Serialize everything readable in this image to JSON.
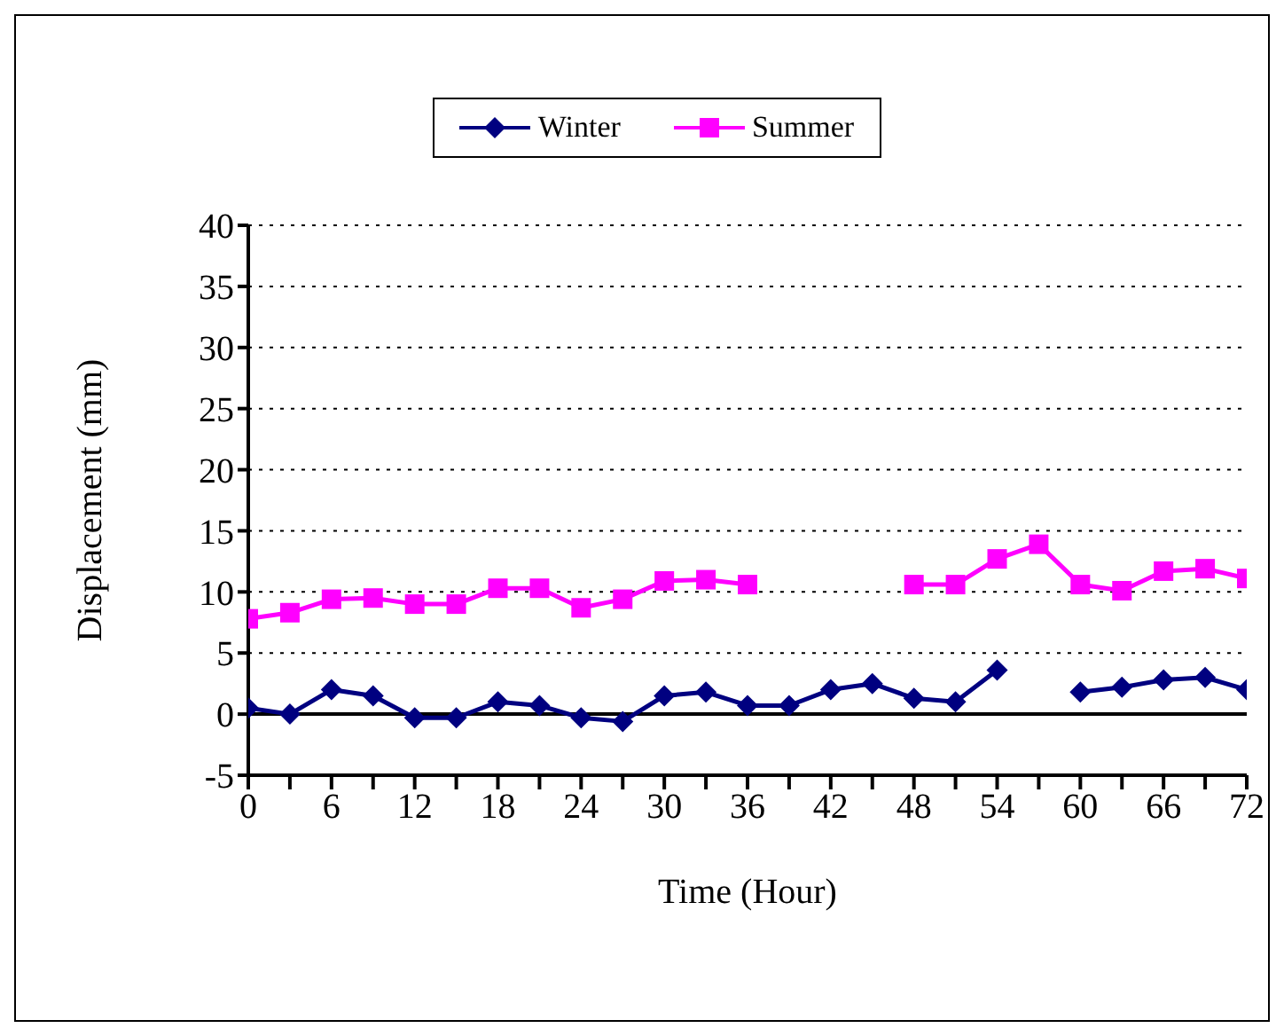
{
  "chart_data": {
    "type": "line",
    "xlabel": "Time (Hour)",
    "ylabel": "Displacement (mm)",
    "x": [
      0,
      3,
      6,
      9,
      12,
      15,
      18,
      21,
      24,
      27,
      30,
      33,
      36,
      39,
      42,
      45,
      48,
      51,
      54,
      57,
      60,
      63,
      66,
      69,
      72
    ],
    "series": [
      {
        "name": "Winter",
        "color": "#000080",
        "marker": "diamond",
        "values": [
          0.5,
          0,
          2.0,
          1.5,
          -0.3,
          -0.3,
          1.0,
          0.7,
          -0.3,
          -0.6,
          1.5,
          1.8,
          0.7,
          0.7,
          2.0,
          2.5,
          1.3,
          1.0,
          3.6,
          null,
          1.8,
          2.2,
          2.8,
          3.0,
          2.0
        ]
      },
      {
        "name": "Summer",
        "color": "#ff00ff",
        "marker": "square",
        "values": [
          7.8,
          8.3,
          9.4,
          9.5,
          9.0,
          9.0,
          10.3,
          10.3,
          8.7,
          9.4,
          10.9,
          11.0,
          10.6,
          null,
          null,
          null,
          10.6,
          10.6,
          12.7,
          13.9,
          10.6,
          10.1,
          11.7,
          11.9,
          11.1
        ]
      }
    ],
    "xlim": [
      0,
      72
    ],
    "xticks": [
      0,
      {
        "value": 3,
        "label": null
      },
      6,
      {
        "value": 9,
        "label": null
      },
      12,
      {
        "value": 15,
        "label": null
      },
      18,
      {
        "value": 21,
        "label": null
      },
      24,
      {
        "value": 27,
        "label": null
      },
      30,
      {
        "value": 33,
        "label": null
      },
      36,
      {
        "value": 39,
        "label": null
      },
      42,
      {
        "value": 45,
        "label": null
      },
      48,
      {
        "value": 51,
        "label": null
      },
      54,
      {
        "value": 57,
        "label": null
      },
      60,
      {
        "value": 63,
        "label": null
      },
      66,
      {
        "value": 69,
        "label": null
      },
      72
    ],
    "ylim": [
      -5,
      40
    ],
    "yticks": [
      -5,
      0,
      5,
      10,
      15,
      20,
      25,
      30,
      35,
      40
    ],
    "ref_lines": [
      {
        "axis": "y",
        "value": 0,
        "color": "#000000"
      }
    ],
    "grid": "y",
    "legend": "top"
  }
}
